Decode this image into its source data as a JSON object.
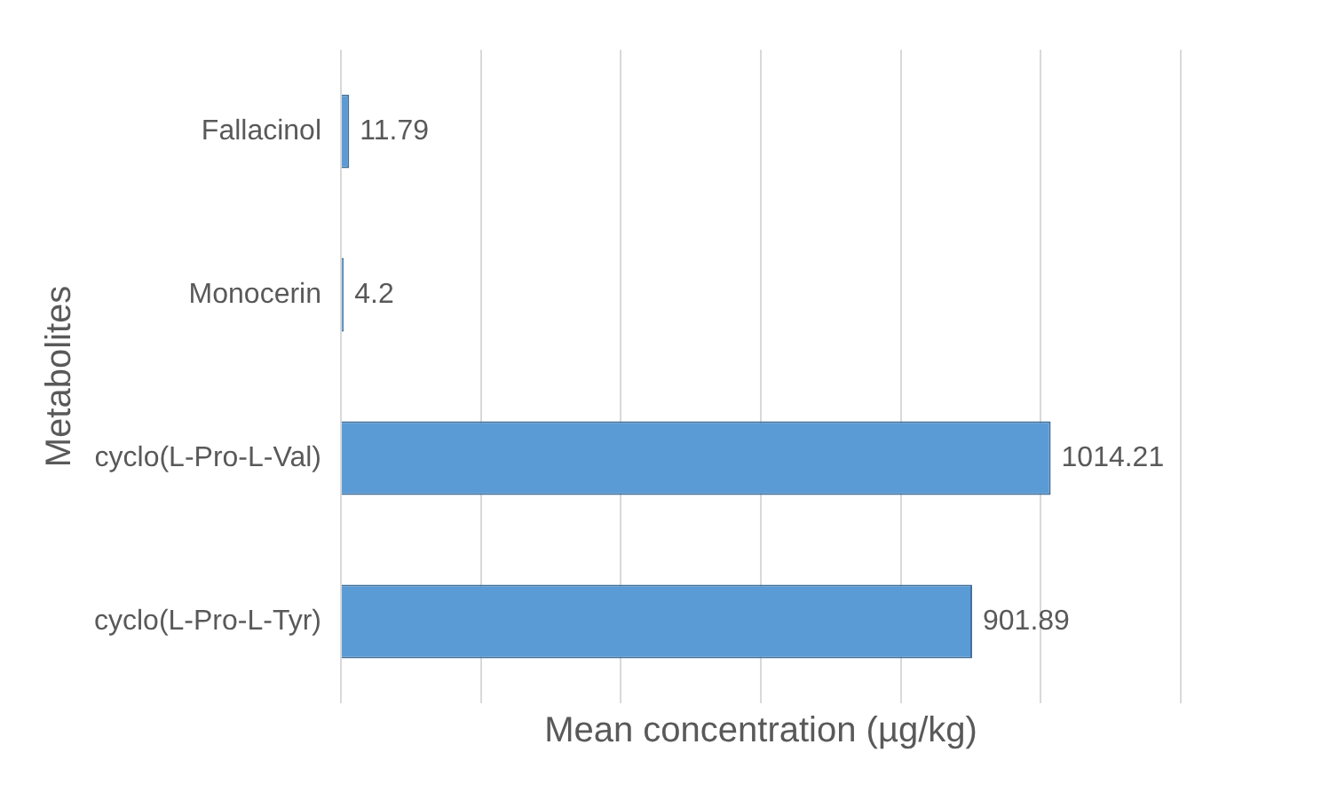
{
  "chart_data": {
    "type": "bar",
    "orientation": "horizontal",
    "xlabel": "Mean concentration (µg/kg)",
    "ylabel": "Metabolites",
    "categories": [
      "Fallacinol",
      "Monocerin",
      "cyclo(L-Pro-L-Val)",
      "cyclo(L-Pro-L-Tyr)"
    ],
    "values": [
      11.79,
      4.2,
      1014.21,
      901.89
    ],
    "color": "#5b9bd5",
    "data_labels": true,
    "xlim": [
      0,
      1200
    ],
    "xticks": [
      {
        "value": 0,
        "label": null
      },
      {
        "value": 200,
        "label": null
      },
      {
        "value": 400,
        "label": null
      },
      {
        "value": 600,
        "label": null
      },
      {
        "value": 800,
        "label": null
      },
      {
        "value": 1000,
        "label": null
      },
      {
        "value": 1200,
        "label": null
      }
    ],
    "grid": "x",
    "tick_labels": "y",
    "legend": false
  }
}
